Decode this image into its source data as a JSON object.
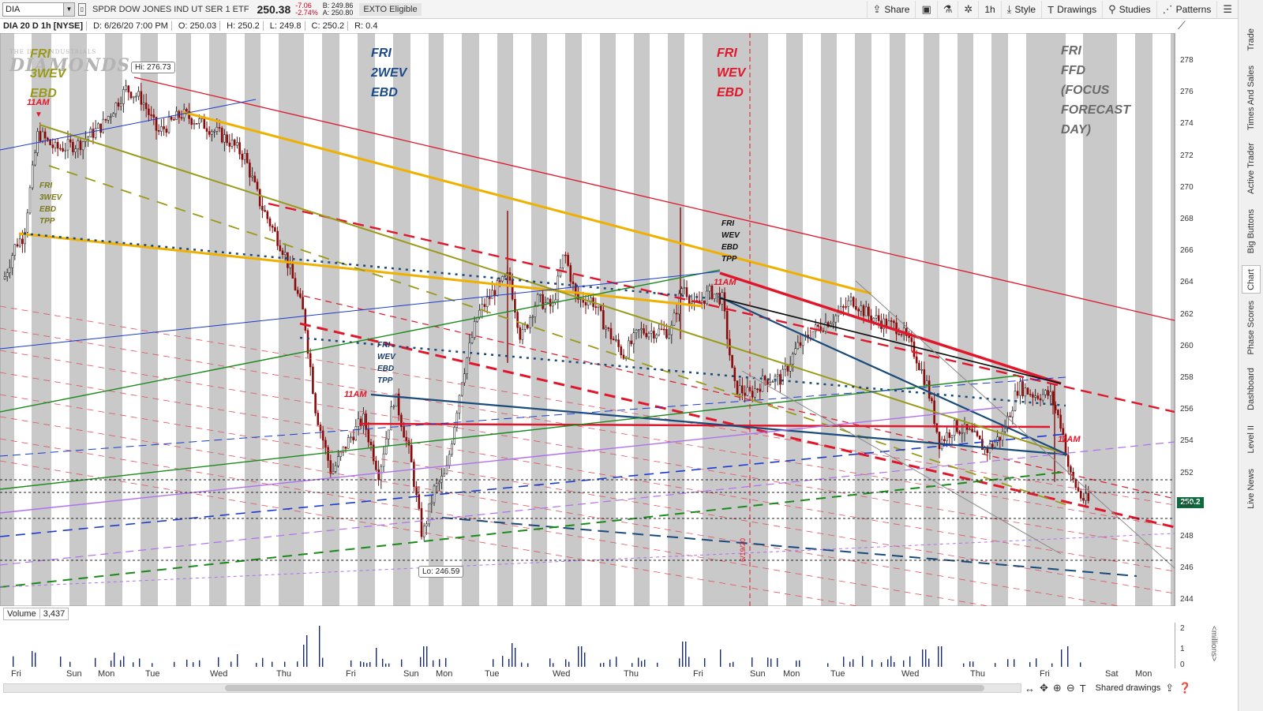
{
  "toolbar": {
    "symbol": "DIA",
    "company": "SPDR DOW JONES IND UT SER 1 ETF",
    "last": "250.38",
    "change": "-7.06",
    "change_pct": "-2.74%",
    "bid": "B: 249.86",
    "ask": "A: 250.80",
    "badge": "EXTO Eligible",
    "buttons": {
      "share": "Share",
      "timeframe": "1h",
      "style": "Style",
      "drawings": "Drawings",
      "studies": "Studies",
      "patterns": "Patterns"
    }
  },
  "info": {
    "title": "DIA 20 D 1h [NYSE]",
    "date": "D: 6/26/20 7:00 PM",
    "open": "O: 250.03",
    "high": "H: 250.2",
    "low": "L: 249.8",
    "close": "C: 250.2",
    "range": "R: 0.4"
  },
  "sidebar": {
    "tabs": [
      "Trade",
      "Times And Sales",
      "Active Trader",
      "Big Buttons",
      "Chart",
      "Phase Scores",
      "Dashboard",
      "Level II",
      "Live News"
    ],
    "active": "Chart"
  },
  "price_axis": {
    "ticks": [
      "278",
      "276",
      "274",
      "272",
      "270",
      "268",
      "266",
      "264",
      "262",
      "260",
      "258",
      "256",
      "254",
      "252",
      "250",
      "248",
      "246",
      "244"
    ],
    "current": "250.2"
  },
  "annotations": {
    "hi_label": "Hi: 276.73",
    "lo_label": "Lo: 246.59",
    "watermark_small": "THE DOW INDUSTRIALS",
    "watermark_big": "DIAMONDS",
    "a1": [
      "FRI",
      "3WEV",
      "EBD"
    ],
    "a1_time": "11AM",
    "a2": [
      "FRI",
      "3WEV",
      "EBD",
      "TPP"
    ],
    "a3": [
      "FRI",
      "2WEV",
      "EBD"
    ],
    "a4": [
      "FRI",
      "WEV",
      "EBD",
      "TPP"
    ],
    "a4_time": "11AM",
    "a5": [
      "FRI",
      "WEV",
      "EBD"
    ],
    "a6": [
      "FRI",
      "WEV",
      "EBD",
      "TPP"
    ],
    "a6_time": "11AM",
    "a7": [
      "FRI",
      "FFD",
      "(FOCUS",
      "FORECAST",
      "DAY)"
    ],
    "a8_time": "11AM",
    "date_marker": "6/19/20"
  },
  "volume": {
    "label": "Volume",
    "value": "3,437",
    "ticks": [
      "2",
      "1",
      "0"
    ],
    "unit": "<millions>"
  },
  "time_axis": [
    "Fri",
    "Sun",
    "Mon",
    "Tue",
    "Wed",
    "Thu",
    "Fri",
    "Sun",
    "Mon",
    "Tue",
    "Wed",
    "Thu",
    "Fri",
    "Sun",
    "Mon",
    "Tue",
    "Wed",
    "Thu",
    "Fri",
    "Sat",
    "Mon"
  ],
  "bottom": {
    "shared": "Shared drawings"
  },
  "colors": {
    "red": "#e0162b",
    "gold": "#f0b000",
    "olive": "#9a9a1a",
    "navy": "#1a4a7a",
    "green": "#1a8a1a",
    "blue": "#1a3ad0",
    "purple": "#b070f0",
    "candle": "#8a0a0a",
    "price_tag": "#0d6b3d"
  }
}
